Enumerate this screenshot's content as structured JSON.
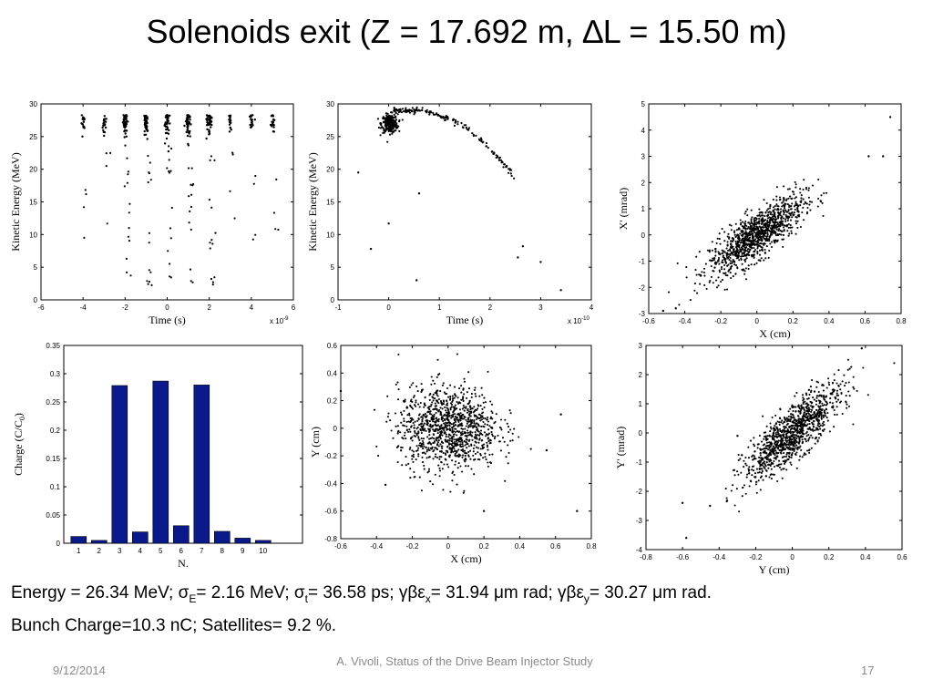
{
  "slide": {
    "title": "Solenoids exit (Z = 17.692 m, ∆L = 15.50 m)",
    "info_line1": {
      "energy": "Energy = 26.34 MeV; ",
      "sigma": "σ",
      "sub_E": "E",
      "sigmaE_val": "= 2.16 MeV; ",
      "sub_t": "t",
      "sigmat_val": "= 36.58 ps;  ",
      "gb": "γβε",
      "sub_x": "x",
      "ex_val": "= 31.94 ",
      "mu": "μ",
      "ex_unit": "m rad; ",
      "sub_y": "y",
      "ey_val": "= 30.27 ",
      "ey_unit": "m rad."
    },
    "info_line2": "Bunch Charge=10.3 nC; Satellites= 9.2 %.",
    "footer_date": "9/12/2014",
    "footer_center": "A. Vivoli, Status of the Drive Beam Injector Study",
    "page_number": "17"
  },
  "chart_data": [
    {
      "id": "energy_vs_time_wide",
      "type": "scatter",
      "xlabel": "Time  (s)",
      "ylabel": "Kinetic Energy  (MeV)",
      "x_exponent": "x 10",
      "x_exponent_power": "-9",
      "xlim": [
        -6,
        6
      ],
      "ylim": [
        0,
        30
      ],
      "xticks": [
        "-6",
        "-4",
        "-2",
        "0",
        "2",
        "4",
        "6"
      ],
      "yticks": [
        "0",
        "5",
        "10",
        "15",
        "20",
        "25",
        "30"
      ],
      "clusters_x": [
        -4,
        -3,
        -2,
        -1,
        0,
        1,
        2,
        3,
        4,
        5
      ],
      "point_size": 3,
      "marker": "filled-dot"
    },
    {
      "id": "energy_vs_time_zoom",
      "type": "scatter",
      "xlabel": "Time  (s)",
      "ylabel": "Kinetic Energy  (MeV)",
      "x_exponent": "x 10",
      "x_exponent_power": "-10",
      "xlim": [
        -1,
        4
      ],
      "ylim": [
        0,
        30
      ],
      "xticks": [
        "-1",
        "0",
        "1",
        "2",
        "3",
        "4"
      ],
      "yticks": [
        "0",
        "5",
        "10",
        "15",
        "20",
        "25",
        "30"
      ],
      "tail_points": [
        [
          2.55,
          6.5
        ],
        [
          3.0,
          5.8
        ],
        [
          3.4,
          1.5
        ],
        [
          0.6,
          16.3
        ],
        [
          0.0,
          11.7
        ],
        [
          -0.35,
          7.8
        ],
        [
          0.55,
          3.0
        ],
        [
          -0.6,
          19.5
        ],
        [
          2.65,
          8.2
        ]
      ],
      "marker": "filled-dot"
    },
    {
      "id": "xprime_vs_x",
      "type": "scatter",
      "xlabel": "X  (cm)",
      "ylabel": "X'  (mrad)",
      "xlim": [
        -0.6,
        0.8
      ],
      "ylim": [
        -3,
        5
      ],
      "xticks": [
        "-0.6",
        "-0.4",
        "-0.2",
        "0",
        "0.2",
        "0.4",
        "0.6",
        "0.8"
      ],
      "yticks": [
        "-3",
        "-2",
        "-1",
        "0",
        "1",
        "2",
        "3",
        "4",
        "5"
      ],
      "correlation": 0.8,
      "sigma_x": 0.13,
      "sigma_y": 0.75,
      "outliers": [
        [
          0.74,
          4.5
        ],
        [
          0.7,
          3.0
        ],
        [
          0.62,
          3.0
        ],
        [
          -0.52,
          -2.9
        ],
        [
          -0.45,
          -2.8
        ]
      ],
      "marker": "filled-dot"
    },
    {
      "id": "charge_per_bunch",
      "type": "bar",
      "xlabel": "N.",
      "ylabel": "Charge (C/C",
      "ylabel_sub": "0",
      "ylabel_end": ")",
      "categories": [
        "1",
        "2",
        "3",
        "4",
        "5",
        "6",
        "7",
        "8",
        "9",
        "10"
      ],
      "values": [
        0.012,
        0.005,
        0.279,
        0.02,
        0.287,
        0.031,
        0.28,
        0.021,
        0.009,
        0.005
      ],
      "ylim": [
        0,
        0.35
      ],
      "yticks": [
        "0",
        "0.05",
        "0.1",
        "0.15",
        "0.2",
        "0.25",
        "0.3",
        "0.35"
      ],
      "bar_color": "#0a1a8c"
    },
    {
      "id": "y_vs_x",
      "type": "scatter",
      "xlabel": "X  (cm)",
      "ylabel": "Y  (cm)",
      "xlim": [
        -0.6,
        0.8
      ],
      "ylim": [
        -0.8,
        0.6
      ],
      "xticks": [
        "-0.6",
        "-0.4",
        "-0.2",
        "0",
        "0.2",
        "0.4",
        "0.6",
        "0.8"
      ],
      "yticks": [
        "-0.8",
        "-0.6",
        "-0.4",
        "-0.2",
        "0",
        "0.2",
        "0.4",
        "0.6"
      ],
      "correlation": 0.0,
      "sigma_x": 0.14,
      "sigma_y": 0.15,
      "outliers": [
        [
          0.72,
          -0.6
        ],
        [
          0.2,
          -0.6
        ],
        [
          -0.35,
          -0.41
        ],
        [
          0.55,
          -0.16
        ],
        [
          0.63,
          0.1
        ],
        [
          -0.6,
          0.27
        ]
      ],
      "marker": "filled-dot"
    },
    {
      "id": "yprime_vs_y",
      "type": "scatter",
      "xlabel": "Y  (cm)",
      "ylabel": "Y'  (mrad)",
      "xlim": [
        -0.8,
        0.6
      ],
      "ylim": [
        -4,
        3
      ],
      "xticks": [
        "-0.8",
        "-0.6",
        "-0.4",
        "-0.2",
        "0",
        "0.2",
        "0.4",
        "0.6"
      ],
      "yticks": [
        "-4",
        "-3",
        "-2",
        "-1",
        "0",
        "1",
        "2",
        "3"
      ],
      "correlation": 0.82,
      "sigma_x": 0.13,
      "sigma_y": 0.8,
      "outliers": [
        [
          -0.58,
          -3.6
        ],
        [
          -0.6,
          -2.4
        ],
        [
          -0.45,
          -2.5
        ],
        [
          0.38,
          2.9
        ],
        [
          -0.3,
          -0.1
        ]
      ],
      "marker": "filled-dot"
    }
  ]
}
